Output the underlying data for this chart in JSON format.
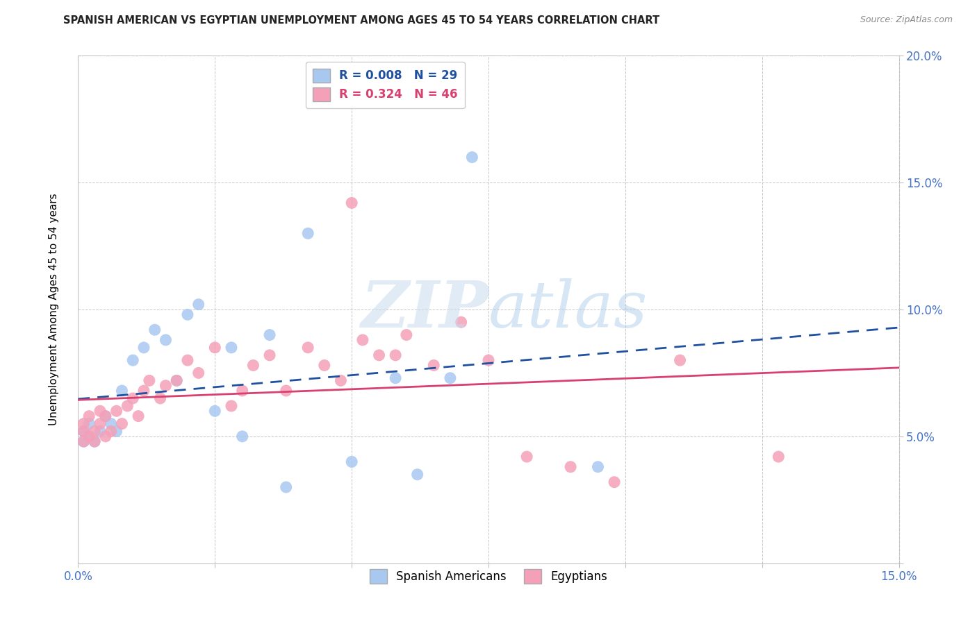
{
  "title": "SPANISH AMERICAN VS EGYPTIAN UNEMPLOYMENT AMONG AGES 45 TO 54 YEARS CORRELATION CHART",
  "source": "Source: ZipAtlas.com",
  "ylabel": "Unemployment Among Ages 45 to 54 years",
  "xlim": [
    0.0,
    0.15
  ],
  "ylim": [
    0.0,
    0.2
  ],
  "blue_R": 0.008,
  "blue_N": 29,
  "pink_R": 0.324,
  "pink_N": 46,
  "legend_label_blue": "Spanish Americans",
  "legend_label_pink": "Egyptians",
  "blue_color": "#A8C8F0",
  "pink_color": "#F4A0B8",
  "blue_line_color": "#2050A0",
  "pink_line_color": "#D84070",
  "watermark_zip": "ZIP",
  "watermark_atlas": "atlas",
  "blue_x": [
    0.001,
    0.001,
    0.002,
    0.002,
    0.003,
    0.004,
    0.005,
    0.006,
    0.007,
    0.008,
    0.01,
    0.012,
    0.014,
    0.016,
    0.018,
    0.02,
    0.022,
    0.025,
    0.028,
    0.03,
    0.035,
    0.038,
    0.042,
    0.05,
    0.058,
    0.062,
    0.068,
    0.072,
    0.095
  ],
  "blue_y": [
    0.052,
    0.048,
    0.055,
    0.05,
    0.048,
    0.052,
    0.058,
    0.055,
    0.052,
    0.068,
    0.08,
    0.085,
    0.092,
    0.088,
    0.072,
    0.098,
    0.102,
    0.06,
    0.085,
    0.05,
    0.09,
    0.03,
    0.13,
    0.04,
    0.073,
    0.035,
    0.073,
    0.16,
    0.038
  ],
  "pink_x": [
    0.001,
    0.001,
    0.001,
    0.002,
    0.002,
    0.003,
    0.003,
    0.004,
    0.004,
    0.005,
    0.005,
    0.006,
    0.007,
    0.008,
    0.009,
    0.01,
    0.011,
    0.012,
    0.013,
    0.015,
    0.016,
    0.018,
    0.02,
    0.022,
    0.025,
    0.028,
    0.03,
    0.032,
    0.035,
    0.038,
    0.042,
    0.045,
    0.048,
    0.05,
    0.052,
    0.055,
    0.058,
    0.06,
    0.065,
    0.07,
    0.075,
    0.082,
    0.09,
    0.098,
    0.11,
    0.128
  ],
  "pink_y": [
    0.048,
    0.052,
    0.055,
    0.05,
    0.058,
    0.048,
    0.052,
    0.06,
    0.055,
    0.05,
    0.058,
    0.052,
    0.06,
    0.055,
    0.062,
    0.065,
    0.058,
    0.068,
    0.072,
    0.065,
    0.07,
    0.072,
    0.08,
    0.075,
    0.085,
    0.062,
    0.068,
    0.078,
    0.082,
    0.068,
    0.085,
    0.078,
    0.072,
    0.142,
    0.088,
    0.082,
    0.082,
    0.09,
    0.078,
    0.095,
    0.08,
    0.042,
    0.038,
    0.032,
    0.08,
    0.042
  ]
}
